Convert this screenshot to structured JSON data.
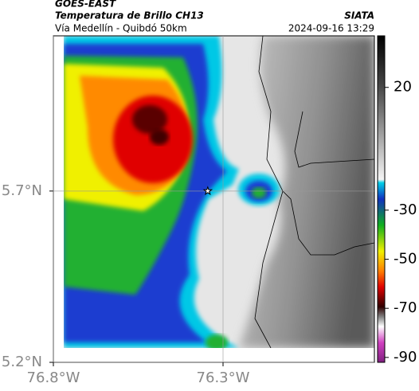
{
  "chart_data": {
    "type": "map",
    "title": "GOES-EAST",
    "subtitle": "Temperatura de Brillo CH13",
    "source": "SIATA",
    "route": "Vía Medellín - Quibdó 50km",
    "timestamp": "2024-09-16 13:29",
    "xlim": [
      -76.8,
      -75.854
    ],
    "ylim": [
      5.2,
      6.153
    ],
    "xticks": [
      {
        "value": -76.8,
        "label": "76.8°W"
      },
      {
        "value": -76.3,
        "label": "76.3°W"
      }
    ],
    "yticks": [
      {
        "value": 5.7,
        "label": "5.7°N"
      },
      {
        "value": 5.2,
        "label": "5.2°N"
      }
    ],
    "grid": true,
    "marker": {
      "x": -76.345,
      "y": 5.7
    },
    "colorbar": {
      "lim": [
        -92,
        41
      ],
      "ticks": [
        20,
        -30,
        -50,
        -70,
        -90
      ]
    }
  }
}
